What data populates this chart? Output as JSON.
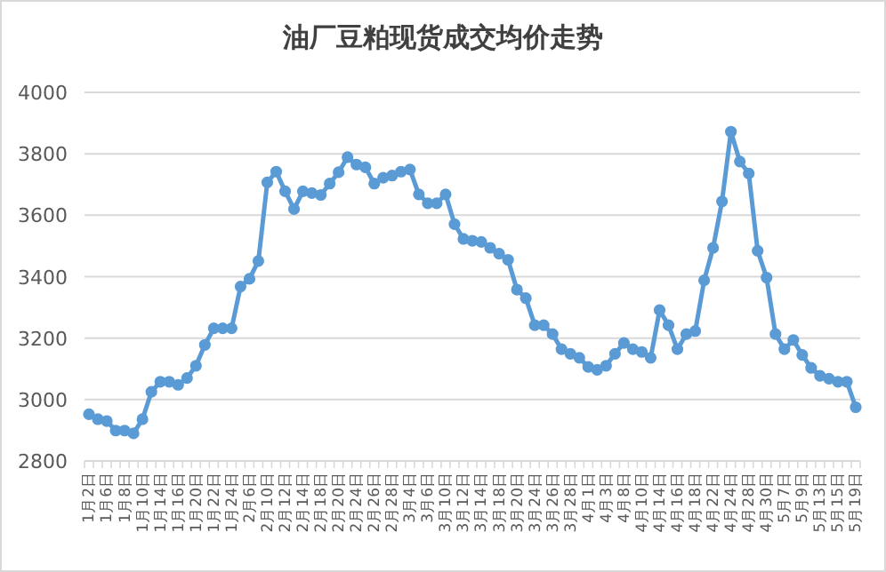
{
  "chart_data": {
    "type": "line",
    "title": "油厂豆粕现货成交均价走势",
    "categories": [
      "1月2日",
      null,
      "1月6日",
      null,
      "1月8日",
      null,
      "1月10日",
      null,
      "1月14日",
      null,
      "1月16日",
      null,
      "1月20日",
      null,
      "1月22日",
      null,
      "1月24日",
      null,
      "2月6日",
      null,
      "2月10日",
      null,
      "2月12日",
      null,
      "2月14日",
      null,
      "2月18日",
      null,
      "2月20日",
      null,
      "2月24日",
      null,
      "2月26日",
      null,
      "2月28日",
      null,
      "3月4日",
      null,
      "3月6日",
      null,
      "3月10日",
      null,
      "3月12日",
      null,
      "3月14日",
      null,
      "3月18日",
      null,
      "3月20日",
      null,
      "3月24日",
      null,
      "3月26日",
      null,
      "3月28日",
      null,
      "4月1日",
      null,
      "4月3日",
      null,
      "4月8日",
      null,
      "4月10日",
      null,
      "4月14日",
      null,
      "4月16日",
      null,
      "4月18日",
      null,
      "4月22日",
      null,
      "4月24日",
      null,
      "4月28日",
      null,
      "4月30日",
      null,
      "5月7日",
      null,
      "5月9日",
      null,
      "5月13日",
      null,
      "5月15日",
      null,
      "5月19日"
    ],
    "values": [
      2952,
      2936,
      2930,
      2899,
      2899,
      2890,
      2936,
      3025,
      3058,
      3058,
      3048,
      3070,
      3110,
      3178,
      3232,
      3232,
      3232,
      3368,
      3393,
      3451,
      3707,
      3742,
      3678,
      3620,
      3678,
      3672,
      3666,
      3703,
      3740,
      3789,
      3765,
      3756,
      3703,
      3722,
      3729,
      3742,
      3749,
      3668,
      3639,
      3639,
      3668,
      3571,
      3523,
      3517,
      3513,
      3494,
      3475,
      3455,
      3358,
      3330,
      3242,
      3242,
      3213,
      3164,
      3149,
      3136,
      3106,
      3097,
      3110,
      3149,
      3184,
      3164,
      3155,
      3136,
      3291,
      3242,
      3164,
      3213,
      3223,
      3388,
      3494,
      3645,
      3872,
      3775,
      3736,
      3484,
      3397,
      3213,
      3164,
      3194,
      3145,
      3103,
      3077,
      3068,
      3058,
      3058,
      2975
    ],
    "color": "#5b9bd5",
    "ylim": [
      2800,
      4000
    ],
    "yticks": [
      2800,
      3000,
      3200,
      3400,
      3600,
      3800,
      4000
    ],
    "grid": "y",
    "marker": "circle",
    "line_style": "solid"
  }
}
